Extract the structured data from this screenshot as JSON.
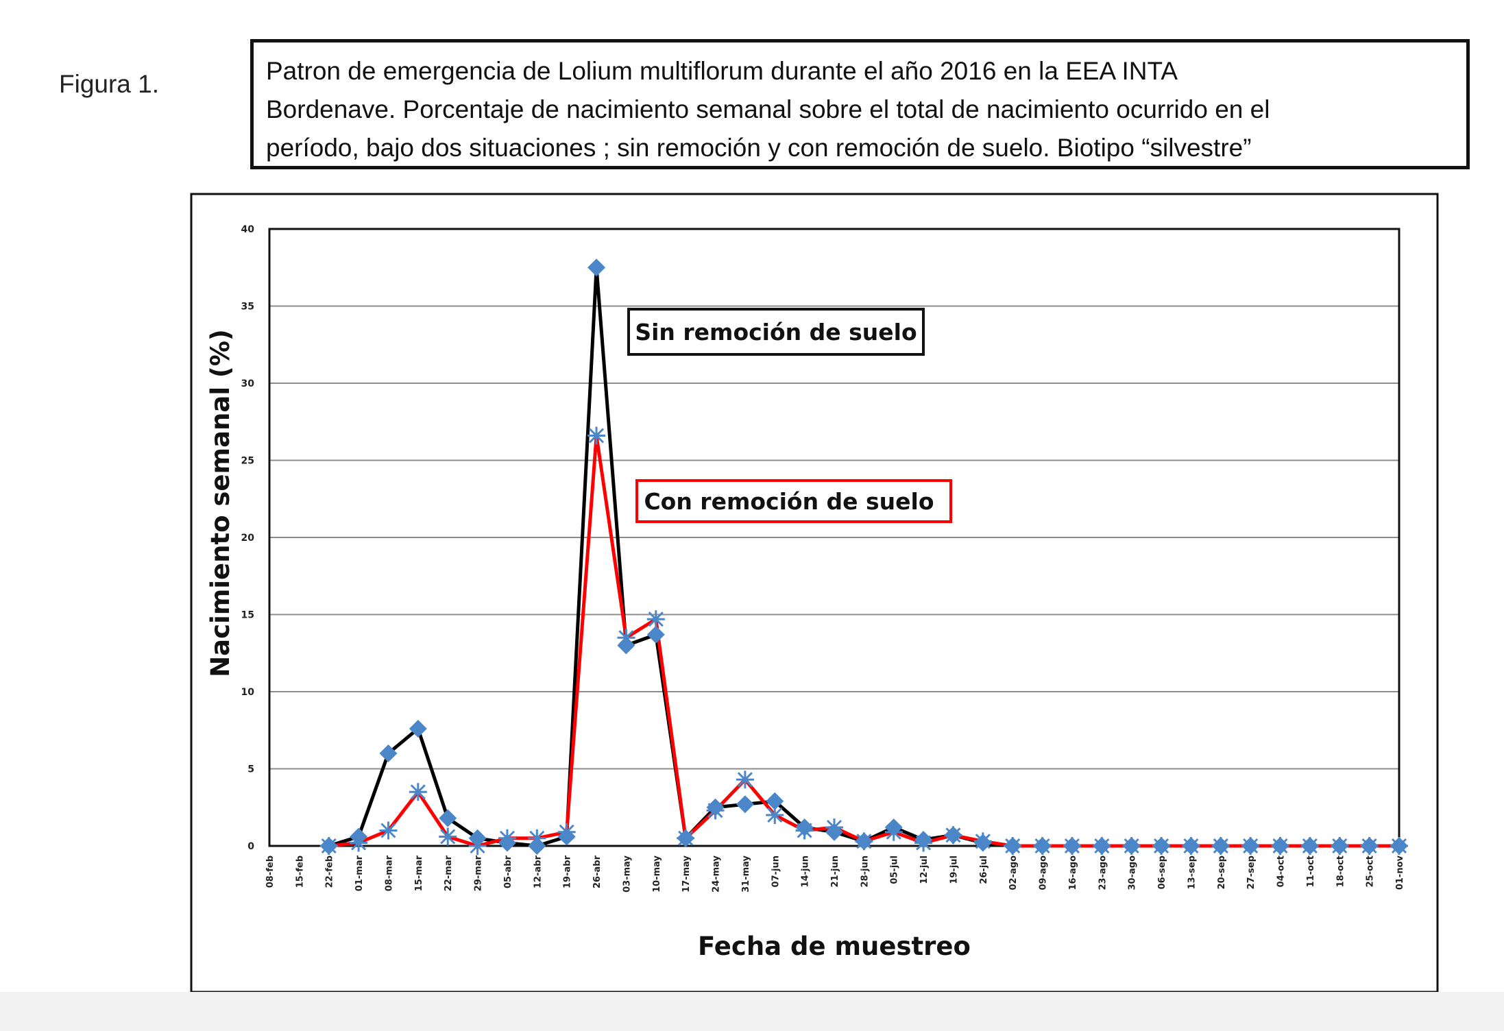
{
  "figure_label": "Figura 1.",
  "caption_lines": [
    "Patron de emergencia de Lolium multiflorum durante el año 2016 en la EEA INTA",
    "Bordenave.  Porcentaje de nacimiento semanal sobre el total de  nacimiento ocurrido  en el",
    "período, bajo dos situaciones ; sin remoción   y con remoción de suelo.  Biotipo “silvestre”"
  ],
  "colors": {
    "series_sin": "#000000",
    "series_con": "#ff0000",
    "marker": "#4a86c8",
    "grid": "#8c8c8c"
  },
  "chart_data": {
    "type": "line",
    "title": "",
    "xlabel": "Fecha de muestreo",
    "ylabel": "Nacimiento semanal (%)",
    "ylim": [
      0,
      40
    ],
    "yticks": [
      0,
      5,
      10,
      15,
      20,
      25,
      30,
      35,
      40
    ],
    "grid": "horizontal",
    "categories": [
      "08-feb",
      "15-feb",
      "22-feb",
      "01-mar",
      "08-mar",
      "15-mar",
      "22-mar",
      "29-mar",
      "05-abr",
      "12-abr",
      "19-abr",
      "26-abr",
      "03-may",
      "10-may",
      "17-may",
      "24-may",
      "31-may",
      "07-jun",
      "14-jun",
      "21-jun",
      "28-jun",
      "05-jul",
      "12-jul",
      "19-jul",
      "26-jul",
      "02-ago",
      "09-ago",
      "16-ago",
      "23-ago",
      "30-ago",
      "06-sep",
      "13-sep",
      "20-sep",
      "27-sep",
      "04-oct",
      "11-oct",
      "18-oct",
      "25-oct",
      "01-nov"
    ],
    "series": [
      {
        "name": "Sin remoción de suelo",
        "marker": "diamond",
        "values": [
          null,
          null,
          0,
          0.6,
          6,
          7.6,
          1.8,
          0.5,
          0.2,
          0,
          0.6,
          37.5,
          13,
          13.7,
          0.5,
          2.5,
          2.7,
          2.9,
          1.2,
          0.9,
          0.3,
          1.2,
          0.4,
          0.7,
          0.2,
          0,
          0,
          0,
          0,
          0,
          0,
          0,
          0,
          0,
          0,
          0,
          0,
          0,
          0
        ]
      },
      {
        "name": "Con remoción de suelo",
        "marker": "star",
        "values": [
          null,
          null,
          0,
          0.2,
          1,
          3.5,
          0.6,
          0,
          0.5,
          0.5,
          0.9,
          26.6,
          13.5,
          14.7,
          0.5,
          2.3,
          4.3,
          2,
          1,
          1.2,
          0.3,
          0.9,
          0.2,
          0.7,
          0.3,
          0,
          0,
          0,
          0,
          0,
          0,
          0,
          0,
          0,
          0,
          0,
          0,
          0,
          0
        ]
      }
    ],
    "annotations": [
      "Sin remoción de suelo",
      "Con remoción de suelo"
    ]
  }
}
